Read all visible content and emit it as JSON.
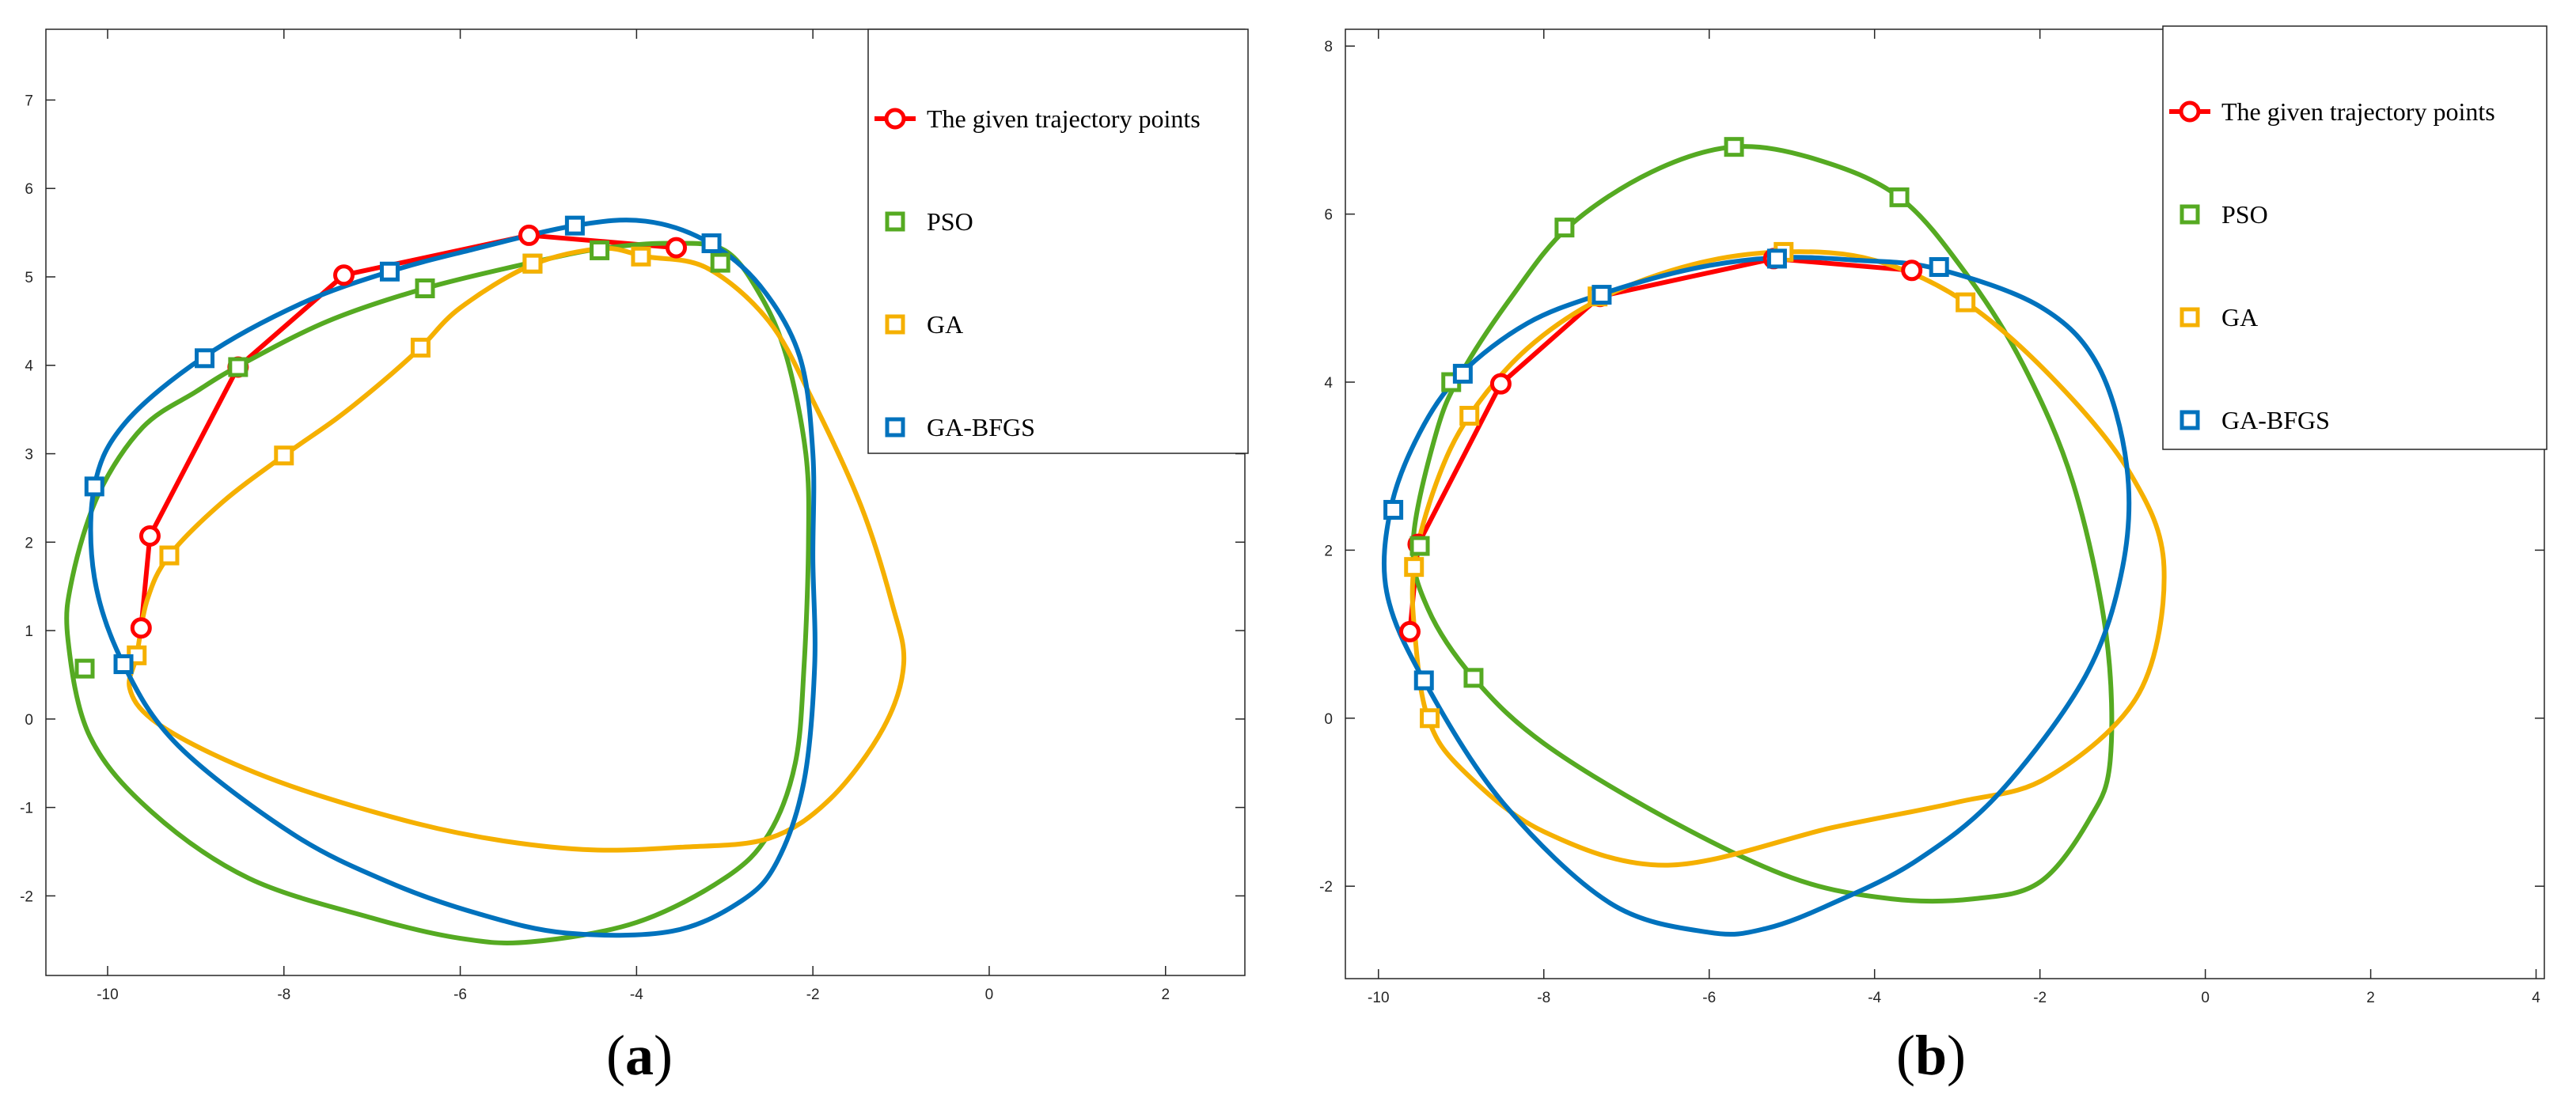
{
  "chart_data": [
    {
      "type": "line",
      "panel_label_open": "(",
      "panel_label_letter": "a",
      "panel_label_close": ")",
      "xlim": [
        -10.7,
        2.9
      ],
      "ylim": [
        -2.9,
        7.8
      ],
      "xticks": [
        -10,
        -8,
        -6,
        -4,
        -2,
        0,
        2
      ],
      "yticks": [
        -2,
        -1,
        0,
        1,
        2,
        3,
        4,
        5,
        6,
        7
      ],
      "grid": false,
      "legend_position": "top-right",
      "series": [
        {
          "name": "The given trajectory points",
          "color": "#ff0000",
          "marker": "circle",
          "closed": false,
          "points": [
            [
              -9.62,
              1.03
            ],
            [
              -9.52,
              2.07
            ],
            [
              -8.52,
              3.98
            ],
            [
              -7.32,
              5.02
            ],
            [
              -5.22,
              5.47
            ],
            [
              -3.55,
              5.33
            ]
          ],
          "markers": [
            [
              -9.62,
              1.03
            ],
            [
              -9.52,
              2.07
            ],
            [
              -8.52,
              3.98
            ],
            [
              -7.32,
              5.02
            ],
            [
              -5.22,
              5.47
            ],
            [
              -3.55,
              5.33
            ]
          ]
        },
        {
          "name": "PSO",
          "color": "#55aa22",
          "marker": "square",
          "closed": true,
          "points": [
            [
              -8.5,
              4.0
            ],
            [
              -7.5,
              4.5
            ],
            [
              -6.4,
              4.87
            ],
            [
              -5.2,
              5.16
            ],
            [
              -4.4,
              5.32
            ],
            [
              -3.6,
              5.38
            ],
            [
              -3.0,
              5.3
            ],
            [
              -2.6,
              4.8
            ],
            [
              -2.3,
              4.1
            ],
            [
              -2.08,
              3.0
            ],
            [
              -2.05,
              2.0
            ],
            [
              -2.1,
              0.6
            ],
            [
              -2.2,
              -0.5
            ],
            [
              -2.5,
              -1.3
            ],
            [
              -3.0,
              -1.8
            ],
            [
              -4.0,
              -2.3
            ],
            [
              -5.2,
              -2.52
            ],
            [
              -6.0,
              -2.48
            ],
            [
              -7.0,
              -2.25
            ],
            [
              -8.4,
              -1.8
            ],
            [
              -9.5,
              -1.05
            ],
            [
              -10.2,
              -0.2
            ],
            [
              -10.45,
              0.9
            ],
            [
              -10.4,
              1.6
            ],
            [
              -10.1,
              2.55
            ],
            [
              -9.6,
              3.3
            ],
            [
              -9.0,
              3.7
            ]
          ],
          "markers": [
            [
              -10.26,
              0.57
            ],
            [
              -8.52,
              3.98
            ],
            [
              -6.4,
              4.87
            ],
            [
              -5.18,
              5.15
            ],
            [
              -4.42,
              5.3
            ],
            [
              -3.05,
              5.16
            ]
          ]
        },
        {
          "name": "GA",
          "color": "#f5b000",
          "marker": "square",
          "closed": true,
          "points": [
            [
              -9.67,
              0.72
            ],
            [
              -9.55,
              1.35
            ],
            [
              -9.3,
              1.85
            ],
            [
              -8.7,
              2.45
            ],
            [
              -8.0,
              2.98
            ],
            [
              -7.4,
              3.4
            ],
            [
              -6.9,
              3.8
            ],
            [
              -6.45,
              4.2
            ],
            [
              -6.0,
              4.65
            ],
            [
              -5.2,
              5.13
            ],
            [
              -4.4,
              5.32
            ],
            [
              -3.9,
              5.23
            ],
            [
              -3.2,
              5.1
            ],
            [
              -2.5,
              4.5
            ],
            [
              -2.0,
              3.6
            ],
            [
              -1.45,
              2.4
            ],
            [
              -1.1,
              1.3
            ],
            [
              -0.97,
              0.62
            ],
            [
              -1.2,
              -0.1
            ],
            [
              -1.8,
              -0.9
            ],
            [
              -2.5,
              -1.35
            ],
            [
              -3.5,
              -1.45
            ],
            [
              -4.5,
              -1.48
            ],
            [
              -5.5,
              -1.38
            ],
            [
              -6.5,
              -1.18
            ],
            [
              -7.8,
              -0.8
            ],
            [
              -8.8,
              -0.4
            ],
            [
              -9.5,
              0.0
            ],
            [
              -9.75,
              0.35
            ]
          ],
          "markers": [
            [
              -9.67,
              0.72
            ],
            [
              -9.3,
              1.85
            ],
            [
              -8.0,
              2.98
            ],
            [
              -6.45,
              4.2
            ],
            [
              -5.18,
              5.15
            ],
            [
              -3.95,
              5.23
            ]
          ]
        },
        {
          "name": "GA-BFGS",
          "color": "#0072bd",
          "marker": "square",
          "closed": true,
          "points": [
            [
              -8.9,
              4.1
            ],
            [
              -7.8,
              4.7
            ],
            [
              -6.8,
              5.06
            ],
            [
              -5.9,
              5.3
            ],
            [
              -4.7,
              5.58
            ],
            [
              -3.9,
              5.63
            ],
            [
              -3.2,
              5.4
            ],
            [
              -2.6,
              4.9
            ],
            [
              -2.15,
              4.1
            ],
            [
              -2.0,
              3.0
            ],
            [
              -2.0,
              1.8
            ],
            [
              -1.98,
              0.6
            ],
            [
              -2.1,
              -0.7
            ],
            [
              -2.4,
              -1.6
            ],
            [
              -2.8,
              -2.05
            ],
            [
              -3.6,
              -2.4
            ],
            [
              -4.8,
              -2.42
            ],
            [
              -5.8,
              -2.2
            ],
            [
              -6.8,
              -1.85
            ],
            [
              -7.9,
              -1.3
            ],
            [
              -9.2,
              -0.3
            ],
            [
              -9.82,
              0.62
            ],
            [
              -10.15,
              1.6
            ],
            [
              -10.15,
              2.63
            ],
            [
              -9.8,
              3.35
            ]
          ],
          "markers": [
            [
              -10.15,
              2.63
            ],
            [
              -9.82,
              0.62
            ],
            [
              -8.9,
              4.08
            ],
            [
              -6.8,
              5.06
            ],
            [
              -4.7,
              5.58
            ],
            [
              -3.15,
              5.38
            ]
          ]
        }
      ]
    },
    {
      "type": "line",
      "panel_label_open": "(",
      "panel_label_letter": "b",
      "panel_label_close": ")",
      "xlim": [
        -10.4,
        4.1
      ],
      "ylim": [
        -3.1,
        8.2
      ],
      "xticks": [
        -10,
        -8,
        -6,
        -4,
        -2,
        0,
        2,
        4
      ],
      "yticks": [
        -2,
        0,
        2,
        4,
        6,
        8
      ],
      "grid": false,
      "legend_position": "top-right",
      "series": [
        {
          "name": "The given trajectory points",
          "color": "#ff0000",
          "marker": "circle",
          "closed": false,
          "points": [
            [
              -9.62,
              1.03
            ],
            [
              -9.52,
              2.07
            ],
            [
              -8.52,
              3.98
            ],
            [
              -7.32,
              5.02
            ],
            [
              -5.22,
              5.47
            ],
            [
              -3.55,
              5.33
            ]
          ],
          "markers": [
            [
              -9.62,
              1.03
            ],
            [
              -9.52,
              2.07
            ],
            [
              -8.52,
              3.98
            ],
            [
              -7.32,
              5.02
            ],
            [
              -5.22,
              5.47
            ],
            [
              -3.55,
              5.33
            ]
          ]
        },
        {
          "name": "PSO",
          "color": "#55aa22",
          "marker": "square",
          "closed": true,
          "points": [
            [
              -9.58,
              2.1
            ],
            [
              -9.3,
              3.4
            ],
            [
              -9.0,
              4.1
            ],
            [
              -8.4,
              5.0
            ],
            [
              -7.7,
              5.85
            ],
            [
              -6.7,
              6.5
            ],
            [
              -5.7,
              6.8
            ],
            [
              -4.7,
              6.65
            ],
            [
              -3.7,
              6.2
            ],
            [
              -2.9,
              5.3
            ],
            [
              -2.2,
              4.2
            ],
            [
              -1.6,
              2.8
            ],
            [
              -1.2,
              1.0
            ],
            [
              -1.15,
              -0.5
            ],
            [
              -1.4,
              -1.2
            ],
            [
              -2.0,
              -1.95
            ],
            [
              -2.8,
              -2.15
            ],
            [
              -3.8,
              -2.15
            ],
            [
              -5.0,
              -1.9
            ],
            [
              -6.5,
              -1.2
            ],
            [
              -8.0,
              -0.3
            ],
            [
              -8.85,
              0.48
            ],
            [
              -9.4,
              1.3
            ]
          ],
          "markers": [
            [
              -9.5,
              2.05
            ],
            [
              -8.85,
              0.48
            ],
            [
              -9.12,
              4.0
            ],
            [
              -7.75,
              5.84
            ],
            [
              -5.7,
              6.8
            ],
            [
              -3.7,
              6.2
            ]
          ]
        },
        {
          "name": "GA",
          "color": "#f5b000",
          "marker": "square",
          "closed": true,
          "points": [
            [
              -9.57,
              1.8
            ],
            [
              -9.3,
              2.8
            ],
            [
              -8.9,
              3.6
            ],
            [
              -8.2,
              4.4
            ],
            [
              -7.3,
              5.0
            ],
            [
              -6.2,
              5.4
            ],
            [
              -5.1,
              5.55
            ],
            [
              -4.0,
              5.45
            ],
            [
              -2.9,
              4.95
            ],
            [
              -1.8,
              4.0
            ],
            [
              -0.9,
              2.9
            ],
            [
              -0.5,
              1.8
            ],
            [
              -0.8,
              0.3
            ],
            [
              -1.9,
              -0.7
            ],
            [
              -3.0,
              -1.0
            ],
            [
              -4.5,
              -1.3
            ],
            [
              -6.5,
              -1.75
            ],
            [
              -8.0,
              -1.35
            ],
            [
              -9.0,
              -0.6
            ],
            [
              -9.4,
              0.0
            ],
            [
              -9.55,
              0.9
            ]
          ],
          "markers": [
            [
              -9.57,
              1.8
            ],
            [
              -9.38,
              0.0
            ],
            [
              -8.9,
              3.6
            ],
            [
              -7.35,
              5.02
            ],
            [
              -5.1,
              5.55
            ],
            [
              -2.9,
              4.95
            ]
          ]
        },
        {
          "name": "GA-BFGS",
          "color": "#0072bd",
          "marker": "square",
          "closed": true,
          "points": [
            [
              -9.85,
              2.5
            ],
            [
              -9.5,
              3.4
            ],
            [
              -9.0,
              4.1
            ],
            [
              -8.2,
              4.7
            ],
            [
              -7.3,
              5.05
            ],
            [
              -6.2,
              5.35
            ],
            [
              -5.2,
              5.48
            ],
            [
              -4.2,
              5.45
            ],
            [
              -3.25,
              5.35
            ],
            [
              -2.0,
              4.9
            ],
            [
              -1.3,
              4.2
            ],
            [
              -0.95,
              3.0
            ],
            [
              -1.0,
              1.8
            ],
            [
              -1.45,
              0.5
            ],
            [
              -2.5,
              -0.9
            ],
            [
              -3.5,
              -1.7
            ],
            [
              -4.5,
              -2.2
            ],
            [
              -5.3,
              -2.5
            ],
            [
              -6.0,
              -2.55
            ],
            [
              -7.2,
              -2.2
            ],
            [
              -8.5,
              -1.0
            ],
            [
              -9.45,
              0.45
            ],
            [
              -9.9,
              1.5
            ]
          ],
          "markers": [
            [
              -9.82,
              2.48
            ],
            [
              -9.45,
              0.45
            ],
            [
              -8.98,
              4.1
            ],
            [
              -7.3,
              5.04
            ],
            [
              -5.18,
              5.47
            ],
            [
              -3.22,
              5.37
            ]
          ]
        }
      ]
    }
  ]
}
